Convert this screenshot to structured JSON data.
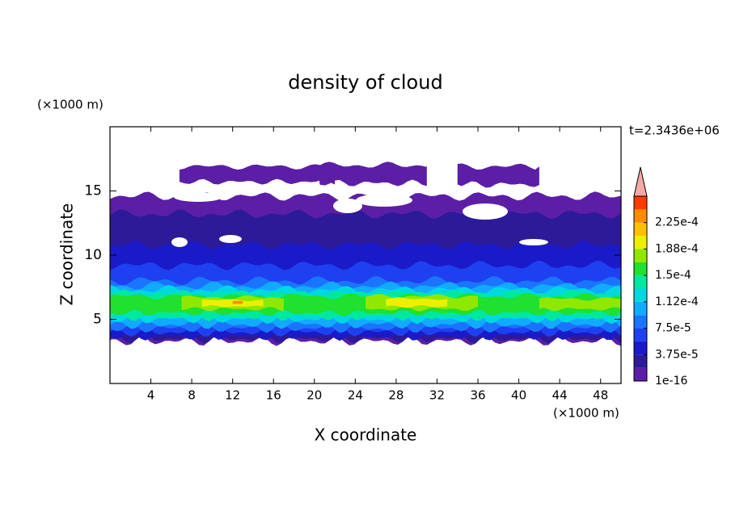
{
  "chart_data": {
    "type": "contour",
    "title": "density of cloud",
    "x_label": "X coordinate",
    "y_label": "Z coordinate",
    "x_units": "(×1000 m)",
    "y_units": "(×1000 m)",
    "time_label": "t=2.3436e+06",
    "xlim": [
      0,
      50
    ],
    "ylim": [
      0,
      20
    ],
    "xticks": [
      4,
      8,
      12,
      16,
      20,
      24,
      28,
      32,
      36,
      40,
      44,
      48
    ],
    "yticks": [
      5,
      10,
      15
    ],
    "colorbar": {
      "clim": [
        1e-16,
        0.0002625
      ],
      "colors": [
        "#5c1ea6",
        "#2c1a98",
        "#1a1ac8",
        "#1f40f0",
        "#1a74ff",
        "#12aaff",
        "#00d8e0",
        "#00e8a0",
        "#20e030",
        "#90e800",
        "#ecf000",
        "#ffc000",
        "#ff8c00",
        "#ff3c00"
      ],
      "extend_color": "#f4a8a8",
      "ticks": [
        {
          "value": 1e-16,
          "label": "1e-16"
        },
        {
          "value": 3.75e-05,
          "label": "3.75e-5"
        },
        {
          "value": 7.5e-05,
          "label": "7.5e-5"
        },
        {
          "value": 0.0001125,
          "label": "1.12e-4"
        },
        {
          "value": 0.00015,
          "label": "1.5e-4"
        },
        {
          "value": 0.0001875,
          "label": "1.88e-4"
        },
        {
          "value": 0.000225,
          "label": "2.25e-4"
        }
      ]
    },
    "layers": [
      {
        "value": 1e-16,
        "x": [
          0,
          50
        ],
        "z": [
          3.3,
          14.6
        ]
      },
      {
        "value": 1e-16,
        "x": [
          6.8,
          22
        ],
        "z": [
          15.7,
          16.9
        ]
      },
      {
        "value": 1e-16,
        "x": [
          20.5,
          31
        ],
        "z": [
          15.6,
          17
        ]
      },
      {
        "value": 1e-16,
        "x": [
          34,
          42
        ],
        "z": [
          15.5,
          16.9
        ]
      },
      {
        "value": 2e-05,
        "x": [
          0,
          50
        ],
        "z": [
          3.5,
          13.2
        ]
      },
      {
        "value": 3.9e-05,
        "x": [
          0,
          50
        ],
        "z": [
          3.7,
          10.8
        ]
      },
      {
        "value": 5.8e-05,
        "x": [
          0,
          50
        ],
        "z": [
          4.0,
          9.2
        ]
      },
      {
        "value": 7.6e-05,
        "x": [
          0,
          50
        ],
        "z": [
          4.3,
          8.0
        ]
      },
      {
        "value": 9.5e-05,
        "x": [
          0,
          50
        ],
        "z": [
          4.6,
          7.6
        ]
      },
      {
        "value": 0.000113,
        "x": [
          0,
          50
        ],
        "z": [
          5.0,
          7.3
        ]
      },
      {
        "value": 0.000132,
        "x": [
          0,
          50
        ],
        "z": [
          5.2,
          7.0
        ]
      },
      {
        "value": 0.000151,
        "x": [
          0,
          50
        ],
        "z": [
          5.5,
          6.8
        ]
      },
      {
        "value": 0.00017,
        "x": [
          7,
          17
        ],
        "z": [
          5.8,
          6.7
        ]
      },
      {
        "value": 0.00017,
        "x": [
          25,
          36
        ],
        "z": [
          5.8,
          6.8
        ]
      },
      {
        "value": 0.00017,
        "x": [
          42,
          50
        ],
        "z": [
          5.8,
          6.6
        ]
      },
      {
        "value": 0.00019,
        "x": [
          9,
          15
        ],
        "z": [
          6.0,
          6.5
        ]
      },
      {
        "value": 0.00019,
        "x": [
          27,
          33
        ],
        "z": [
          6.0,
          6.6
        ]
      },
      {
        "value": 0.00023,
        "x": [
          12,
          13
        ],
        "z": [
          6.2,
          6.4
        ]
      }
    ]
  }
}
